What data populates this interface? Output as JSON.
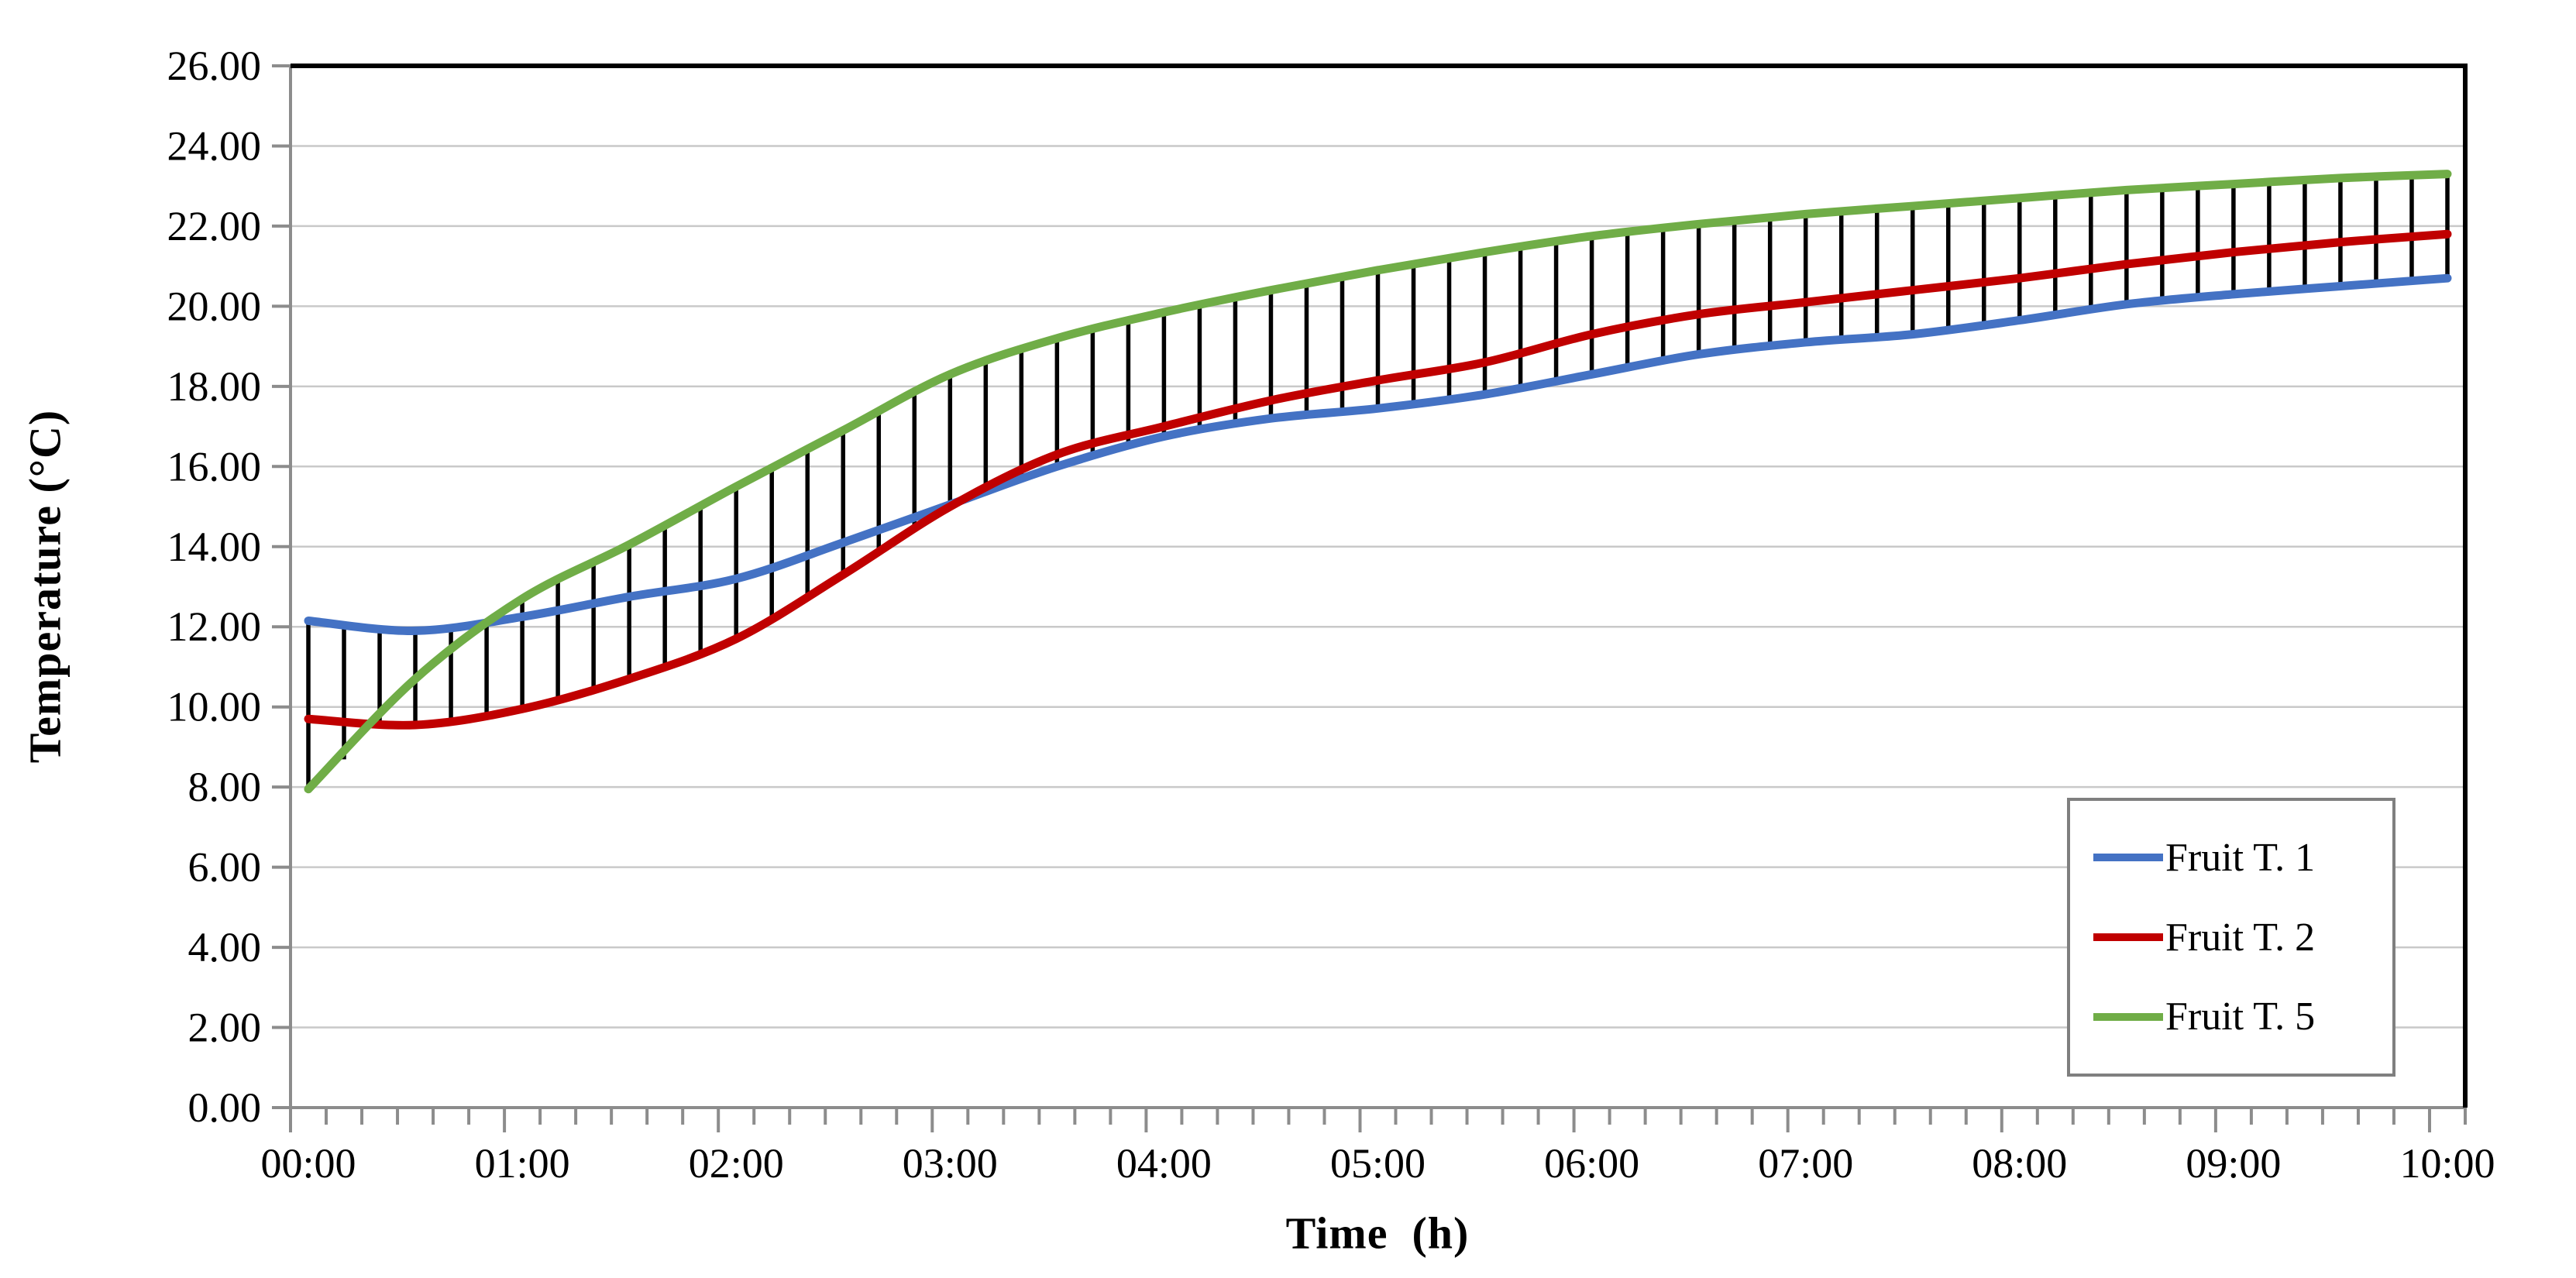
{
  "chart_data": {
    "type": "line",
    "title": "",
    "xlabel": "Time  (h)",
    "ylabel": "Temperature (°C)",
    "x_hours": [
      0,
      0.5,
      1,
      1.5,
      2,
      2.5,
      3,
      3.5,
      4,
      4.5,
      5,
      5.5,
      6,
      6.5,
      7,
      7.5,
      8,
      8.5,
      9,
      9.5,
      10
    ],
    "x_tick_labels": [
      "00:00",
      "01:00",
      "02:00",
      "03:00",
      "04:00",
      "05:00",
      "06:00",
      "07:00",
      "08:00",
      "09:00",
      "10:00"
    ],
    "y_tick_labels": [
      "0.00",
      "2.00",
      "4.00",
      "6.00",
      "8.00",
      "10.00",
      "12.00",
      "14.00",
      "16.00",
      "18.00",
      "20.00",
      "22.00",
      "24.00",
      "26.00"
    ],
    "ylim": [
      0,
      26
    ],
    "xlim_hours": [
      0,
      10
    ],
    "y_major_step": 2,
    "x_minor_ticks_per_hour": 6,
    "grid": "horizontal-only",
    "legend_position": "middle-right",
    "series": [
      {
        "name": "Fruit T. 1",
        "color": "#4472C4",
        "values": [
          12.15,
          11.9,
          12.25,
          12.75,
          13.2,
          14.1,
          15.05,
          16.0,
          16.75,
          17.2,
          17.45,
          17.8,
          18.3,
          18.8,
          19.1,
          19.3,
          19.65,
          20.05,
          20.3,
          20.5,
          20.7
        ]
      },
      {
        "name": "Fruit T. 2",
        "color": "#C00000",
        "values": [
          9.7,
          9.55,
          9.95,
          10.7,
          11.7,
          13.3,
          15.0,
          16.3,
          17.0,
          17.65,
          18.15,
          18.6,
          19.3,
          19.8,
          20.1,
          20.4,
          20.7,
          21.05,
          21.35,
          21.6,
          21.8
        ]
      },
      {
        "name": "Fruit T. 5",
        "color": "#70AD47",
        "values": [
          7.95,
          10.7,
          12.7,
          14.05,
          15.5,
          16.9,
          18.3,
          19.2,
          19.85,
          20.4,
          20.9,
          21.35,
          21.75,
          22.05,
          22.3,
          22.5,
          22.7,
          22.9,
          23.05,
          23.2,
          23.3
        ]
      }
    ],
    "high_low_lines": {
      "color": "#000000",
      "interval_minutes": 10,
      "description": "vertical lines spanning min to max of the three series at each 10-minute step"
    },
    "legend": {
      "border_color": "#7F7F7F",
      "items": [
        {
          "label": "Fruit T. 1",
          "color": "#4472C4"
        },
        {
          "label": "Fruit T. 2",
          "color": "#C00000"
        },
        {
          "label": "Fruit T. 5",
          "color": "#70AD47"
        }
      ]
    }
  },
  "styles": {
    "background": "#FFFFFF",
    "gridline_color": "#C9C9C9",
    "axis_color": "#8C8C8C",
    "plot_border_color": "#000000",
    "text_color": "#000000"
  }
}
